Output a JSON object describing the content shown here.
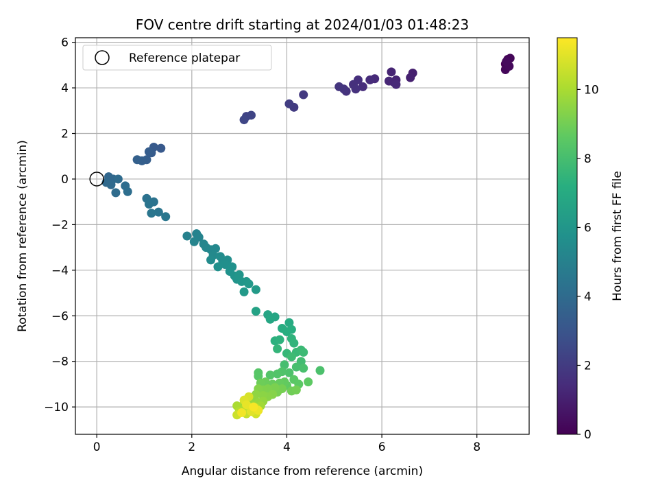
{
  "chart_data": {
    "type": "scatter",
    "title": "FOV centre drift starting at 2024/01/03 01:48:23",
    "xlabel": "Angular distance from reference (arcmin)",
    "ylabel": "Rotation from reference (arcmin)",
    "colorbar_label": "Hours from first FF file",
    "colormap": "viridis",
    "xlim": [
      -0.45,
      9.1
    ],
    "ylim": [
      -11.2,
      6.2
    ],
    "clim": [
      0,
      11.5
    ],
    "xticks": [
      0,
      2,
      4,
      6,
      8
    ],
    "xtick_labels": [
      "0",
      "2",
      "4",
      "6",
      "8"
    ],
    "yticks": [
      6,
      4,
      2,
      0,
      -2,
      -4,
      -6,
      -8,
      -10
    ],
    "ytick_labels": [
      "6",
      "4",
      "2",
      "0",
      "−2",
      "−4",
      "−6",
      "−8",
      "−10"
    ],
    "cticks": [
      0,
      2,
      4,
      6,
      8,
      10
    ],
    "ctick_labels": [
      "0",
      "2",
      "4",
      "6",
      "8",
      "10"
    ],
    "grid": true,
    "legend": {
      "position": "upper-left",
      "label": "Reference platepar"
    },
    "reference_point": {
      "x": 0,
      "y": 0
    },
    "points": [
      {
        "x": 8.6,
        "y": 5.05,
        "c": 0.0
      },
      {
        "x": 8.65,
        "y": 5.25,
        "c": 0.1
      },
      {
        "x": 8.7,
        "y": 5.3,
        "c": 0.15
      },
      {
        "x": 8.6,
        "y": 4.8,
        "c": 0.2
      },
      {
        "x": 8.68,
        "y": 4.95,
        "c": 0.25
      },
      {
        "x": 8.62,
        "y": 5.15,
        "c": 0.3
      },
      {
        "x": 6.65,
        "y": 4.65,
        "c": 1.0
      },
      {
        "x": 6.6,
        "y": 4.45,
        "c": 1.05
      },
      {
        "x": 6.3,
        "y": 4.35,
        "c": 1.1
      },
      {
        "x": 6.2,
        "y": 4.7,
        "c": 1.15
      },
      {
        "x": 6.25,
        "y": 4.25,
        "c": 1.2
      },
      {
        "x": 6.15,
        "y": 4.3,
        "c": 1.25
      },
      {
        "x": 6.3,
        "y": 4.15,
        "c": 1.3
      },
      {
        "x": 5.85,
        "y": 4.4,
        "c": 1.35
      },
      {
        "x": 5.75,
        "y": 4.35,
        "c": 1.4
      },
      {
        "x": 5.6,
        "y": 4.05,
        "c": 1.45
      },
      {
        "x": 5.5,
        "y": 4.35,
        "c": 1.5
      },
      {
        "x": 5.4,
        "y": 4.15,
        "c": 1.55
      },
      {
        "x": 5.45,
        "y": 3.95,
        "c": 1.6
      },
      {
        "x": 5.25,
        "y": 3.85,
        "c": 1.65
      },
      {
        "x": 5.2,
        "y": 3.95,
        "c": 1.7
      },
      {
        "x": 5.1,
        "y": 4.05,
        "c": 1.75
      },
      {
        "x": 4.35,
        "y": 3.7,
        "c": 1.9
      },
      {
        "x": 4.15,
        "y": 3.15,
        "c": 2.0
      },
      {
        "x": 4.05,
        "y": 3.3,
        "c": 2.05
      },
      {
        "x": 3.15,
        "y": 2.75,
        "c": 2.3
      },
      {
        "x": 3.25,
        "y": 2.8,
        "c": 2.35
      },
      {
        "x": 3.1,
        "y": 2.6,
        "c": 2.4
      },
      {
        "x": 1.35,
        "y": 1.35,
        "c": 3.2
      },
      {
        "x": 1.2,
        "y": 1.4,
        "c": 3.25
      },
      {
        "x": 1.15,
        "y": 1.15,
        "c": 3.3
      },
      {
        "x": 1.1,
        "y": 1.2,
        "c": 3.35
      },
      {
        "x": 1.05,
        "y": 0.85,
        "c": 3.4
      },
      {
        "x": 0.95,
        "y": 0.8,
        "c": 3.45
      },
      {
        "x": 0.85,
        "y": 0.85,
        "c": 3.5
      },
      {
        "x": 0.25,
        "y": 0.1,
        "c": 3.8
      },
      {
        "x": 0.35,
        "y": 0.0,
        "c": 3.85
      },
      {
        "x": 0.2,
        "y": -0.15,
        "c": 3.9
      },
      {
        "x": 0.3,
        "y": -0.25,
        "c": 3.95
      },
      {
        "x": 0.45,
        "y": 0.0,
        "c": 4.0
      },
      {
        "x": 0.4,
        "y": -0.6,
        "c": 4.05
      },
      {
        "x": 0.6,
        "y": -0.3,
        "c": 4.1
      },
      {
        "x": 0.65,
        "y": -0.55,
        "c": 4.15
      },
      {
        "x": 1.05,
        "y": -0.85,
        "c": 4.3
      },
      {
        "x": 1.2,
        "y": -1.0,
        "c": 4.35
      },
      {
        "x": 1.1,
        "y": -1.1,
        "c": 4.4
      },
      {
        "x": 1.3,
        "y": -1.45,
        "c": 4.45
      },
      {
        "x": 1.15,
        "y": -1.5,
        "c": 4.5
      },
      {
        "x": 1.45,
        "y": -1.65,
        "c": 4.55
      },
      {
        "x": 1.9,
        "y": -2.5,
        "c": 5.0
      },
      {
        "x": 2.1,
        "y": -2.4,
        "c": 5.05
      },
      {
        "x": 2.15,
        "y": -2.55,
        "c": 5.1
      },
      {
        "x": 2.05,
        "y": -2.75,
        "c": 5.15
      },
      {
        "x": 2.25,
        "y": -2.85,
        "c": 5.2
      },
      {
        "x": 2.3,
        "y": -3.0,
        "c": 5.25
      },
      {
        "x": 2.4,
        "y": -3.1,
        "c": 5.3
      },
      {
        "x": 2.5,
        "y": -3.05,
        "c": 5.35
      },
      {
        "x": 2.45,
        "y": -3.35,
        "c": 5.4
      },
      {
        "x": 2.4,
        "y": -3.55,
        "c": 5.45
      },
      {
        "x": 2.6,
        "y": -3.4,
        "c": 5.5
      },
      {
        "x": 2.65,
        "y": -3.6,
        "c": 5.55
      },
      {
        "x": 2.75,
        "y": -3.55,
        "c": 5.6
      },
      {
        "x": 2.7,
        "y": -3.75,
        "c": 5.65
      },
      {
        "x": 2.55,
        "y": -3.85,
        "c": 5.7
      },
      {
        "x": 2.85,
        "y": -3.85,
        "c": 5.75
      },
      {
        "x": 2.8,
        "y": -4.05,
        "c": 5.8
      },
      {
        "x": 2.9,
        "y": -4.25,
        "c": 5.85
      },
      {
        "x": 2.95,
        "y": -4.4,
        "c": 5.9
      },
      {
        "x": 3.0,
        "y": -4.2,
        "c": 5.95
      },
      {
        "x": 3.05,
        "y": -4.5,
        "c": 6.0
      },
      {
        "x": 3.15,
        "y": -4.5,
        "c": 6.05
      },
      {
        "x": 3.2,
        "y": -4.6,
        "c": 6.1
      },
      {
        "x": 3.1,
        "y": -4.95,
        "c": 6.15
      },
      {
        "x": 3.35,
        "y": -4.85,
        "c": 6.2
      },
      {
        "x": 3.35,
        "y": -5.8,
        "c": 6.6
      },
      {
        "x": 3.6,
        "y": -5.95,
        "c": 6.7
      },
      {
        "x": 3.75,
        "y": -6.05,
        "c": 6.75
      },
      {
        "x": 3.65,
        "y": -6.15,
        "c": 6.8
      },
      {
        "x": 4.05,
        "y": -6.3,
        "c": 7.0
      },
      {
        "x": 3.9,
        "y": -6.55,
        "c": 7.1
      },
      {
        "x": 4.0,
        "y": -6.7,
        "c": 7.15
      },
      {
        "x": 4.1,
        "y": -6.6,
        "c": 7.2
      },
      {
        "x": 3.75,
        "y": -7.1,
        "c": 7.3
      },
      {
        "x": 3.85,
        "y": -7.05,
        "c": 7.35
      },
      {
        "x": 4.1,
        "y": -7.0,
        "c": 7.4
      },
      {
        "x": 4.15,
        "y": -7.2,
        "c": 7.45
      },
      {
        "x": 3.8,
        "y": -7.45,
        "c": 7.5
      },
      {
        "x": 4.0,
        "y": -7.65,
        "c": 7.6
      },
      {
        "x": 4.2,
        "y": -7.6,
        "c": 7.65
      },
      {
        "x": 4.3,
        "y": -7.5,
        "c": 7.7
      },
      {
        "x": 4.35,
        "y": -7.6,
        "c": 7.75
      },
      {
        "x": 4.1,
        "y": -7.8,
        "c": 7.8
      },
      {
        "x": 4.3,
        "y": -8.0,
        "c": 7.9
      },
      {
        "x": 3.95,
        "y": -8.15,
        "c": 8.0
      },
      {
        "x": 4.2,
        "y": -8.25,
        "c": 8.05
      },
      {
        "x": 4.35,
        "y": -8.3,
        "c": 8.1
      },
      {
        "x": 4.7,
        "y": -8.4,
        "c": 8.15
      },
      {
        "x": 4.05,
        "y": -8.5,
        "c": 8.2
      },
      {
        "x": 3.9,
        "y": -8.45,
        "c": 8.25
      },
      {
        "x": 3.8,
        "y": -8.55,
        "c": 8.3
      },
      {
        "x": 3.65,
        "y": -8.6,
        "c": 8.35
      },
      {
        "x": 3.4,
        "y": -8.5,
        "c": 8.4
      },
      {
        "x": 3.4,
        "y": -8.65,
        "c": 8.45
      },
      {
        "x": 4.15,
        "y": -8.8,
        "c": 8.5
      },
      {
        "x": 4.25,
        "y": -9.0,
        "c": 8.55
      },
      {
        "x": 4.45,
        "y": -8.9,
        "c": 8.6
      },
      {
        "x": 4.0,
        "y": -9.05,
        "c": 8.65
      },
      {
        "x": 3.95,
        "y": -8.9,
        "c": 8.7
      },
      {
        "x": 3.85,
        "y": -8.95,
        "c": 8.75
      },
      {
        "x": 3.7,
        "y": -9.0,
        "c": 8.8
      },
      {
        "x": 3.55,
        "y": -8.9,
        "c": 8.85
      },
      {
        "x": 3.45,
        "y": -8.95,
        "c": 8.9
      },
      {
        "x": 4.1,
        "y": -9.3,
        "c": 8.95
      },
      {
        "x": 4.2,
        "y": -9.25,
        "c": 9.0
      },
      {
        "x": 3.9,
        "y": -9.2,
        "c": 9.05
      },
      {
        "x": 3.8,
        "y": -9.35,
        "c": 9.1
      },
      {
        "x": 3.75,
        "y": -9.15,
        "c": 9.15
      },
      {
        "x": 3.6,
        "y": -9.2,
        "c": 9.2
      },
      {
        "x": 3.5,
        "y": -9.25,
        "c": 9.25
      },
      {
        "x": 3.4,
        "y": -9.2,
        "c": 9.3
      },
      {
        "x": 3.7,
        "y": -9.45,
        "c": 9.35
      },
      {
        "x": 3.6,
        "y": -9.55,
        "c": 9.4
      },
      {
        "x": 3.5,
        "y": -9.5,
        "c": 9.45
      },
      {
        "x": 3.35,
        "y": -9.45,
        "c": 9.5
      },
      {
        "x": 3.3,
        "y": -9.6,
        "c": 9.55
      },
      {
        "x": 3.5,
        "y": -9.75,
        "c": 9.6
      },
      {
        "x": 3.4,
        "y": -9.8,
        "c": 9.65
      },
      {
        "x": 3.2,
        "y": -9.7,
        "c": 9.7
      },
      {
        "x": 3.1,
        "y": -9.85,
        "c": 9.75
      },
      {
        "x": 3.3,
        "y": -9.95,
        "c": 9.8
      },
      {
        "x": 3.45,
        "y": -9.95,
        "c": 9.85
      },
      {
        "x": 3.2,
        "y": -10.0,
        "c": 9.9
      },
      {
        "x": 3.05,
        "y": -10.0,
        "c": 9.95
      },
      {
        "x": 2.95,
        "y": -9.95,
        "c": 10.0
      },
      {
        "x": 3.1,
        "y": -10.1,
        "c": 10.1
      },
      {
        "x": 3.0,
        "y": -10.2,
        "c": 10.2
      },
      {
        "x": 3.25,
        "y": -10.15,
        "c": 10.3
      },
      {
        "x": 3.35,
        "y": -10.05,
        "c": 10.4
      },
      {
        "x": 3.15,
        "y": -10.3,
        "c": 10.5
      },
      {
        "x": 2.95,
        "y": -10.35,
        "c": 10.6
      },
      {
        "x": 3.35,
        "y": -10.3,
        "c": 10.7
      },
      {
        "x": 3.2,
        "y": -9.55,
        "c": 10.8
      },
      {
        "x": 3.1,
        "y": -9.7,
        "c": 10.9
      },
      {
        "x": 3.25,
        "y": -10.2,
        "c": 11.0
      },
      {
        "x": 3.15,
        "y": -9.9,
        "c": 11.1
      },
      {
        "x": 3.4,
        "y": -10.15,
        "c": 11.2
      },
      {
        "x": 3.05,
        "y": -10.25,
        "c": 11.3
      },
      {
        "x": 3.3,
        "y": -10.0,
        "c": 11.4
      }
    ]
  }
}
